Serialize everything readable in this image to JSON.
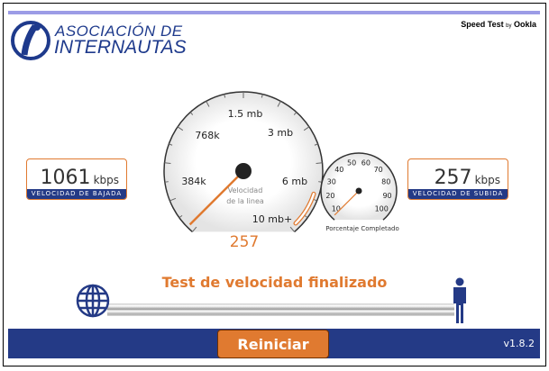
{
  "logo": {
    "line1": "ASOCIACIÓN DE",
    "line2": "INTERNAUTAS"
  },
  "brand": {
    "main": "Speed Test",
    "by": "by",
    "company": "Ookla"
  },
  "download": {
    "value": "1061",
    "unit": "kbps",
    "label": "VELOCIDAD DE BAJADA"
  },
  "upload": {
    "value": "257",
    "unit": "kbps",
    "label": "VELOCIDAD DE SUBIDA"
  },
  "speed_gauge": {
    "labels": [
      "384k",
      "768k",
      "1.5 mb",
      "3 mb",
      "6 mb",
      "10 mb+"
    ],
    "caption1": "Velocidad",
    "caption2": "de la linea",
    "reading": "257",
    "needle_color": "#e07a30"
  },
  "progress_gauge": {
    "labels": [
      "10",
      "20",
      "30",
      "40",
      "50",
      "60",
      "70",
      "80",
      "90",
      "100"
    ],
    "caption": "Porcentaje Completado"
  },
  "status": "Test de velocidad finalizado",
  "restart_label": "Reiniciar",
  "version": "v1.8.2",
  "colors": {
    "accent": "#e07a30",
    "brand_blue": "#243a86",
    "top_bar": "#9c9ce6"
  },
  "icons": {
    "globe": "globe-icon",
    "user": "person-icon"
  }
}
